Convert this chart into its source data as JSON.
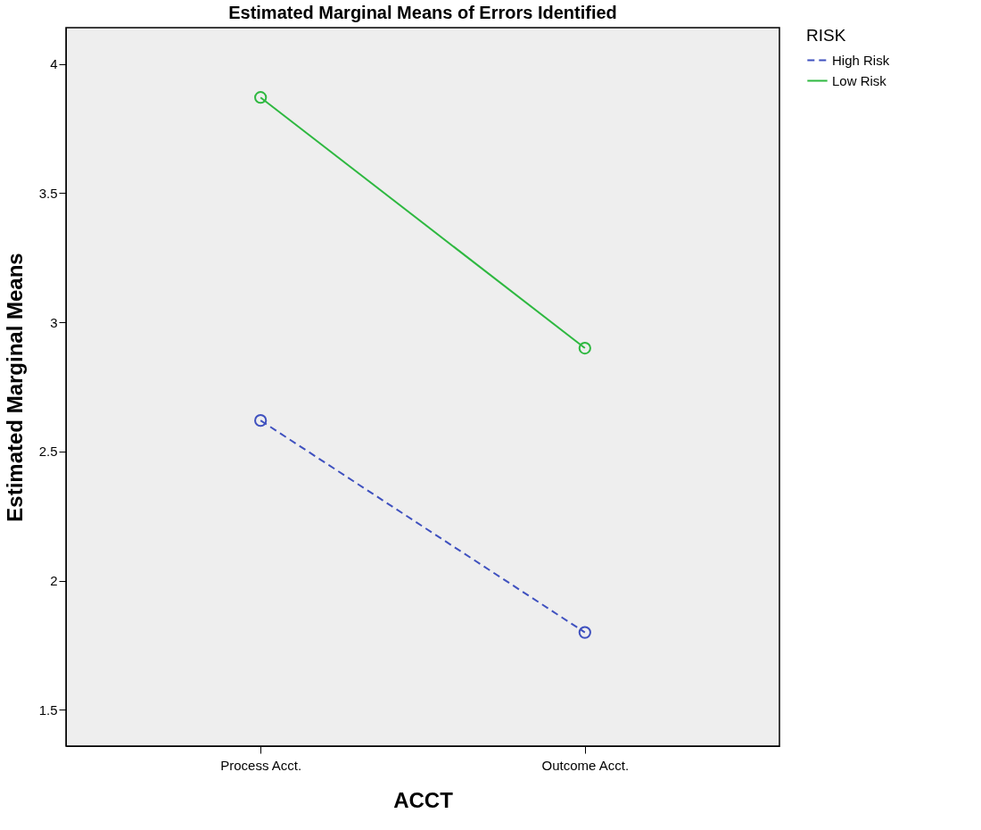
{
  "chart_data": {
    "type": "line",
    "title": "Estimated Marginal Means of Errors Identified",
    "xlabel": "ACCT",
    "ylabel": "Estimated Marginal Means",
    "legend_title": "RISK",
    "categories": [
      "Process Acct.",
      "Outcome Acct."
    ],
    "series": [
      {
        "name": "High Risk",
        "color": "#3f51bf",
        "values": [
          2.62,
          1.8
        ],
        "line_style": "dashed"
      },
      {
        "name": "Low Risk",
        "color": "#2eb840",
        "values": [
          3.87,
          2.9
        ],
        "line_style": "solid"
      }
    ],
    "ylim": [
      1.36,
      4.14
    ],
    "yticks": [
      1.5,
      2,
      2.5,
      3,
      3.5,
      4
    ],
    "grid": false,
    "legend": "top right",
    "marker": "circle"
  }
}
